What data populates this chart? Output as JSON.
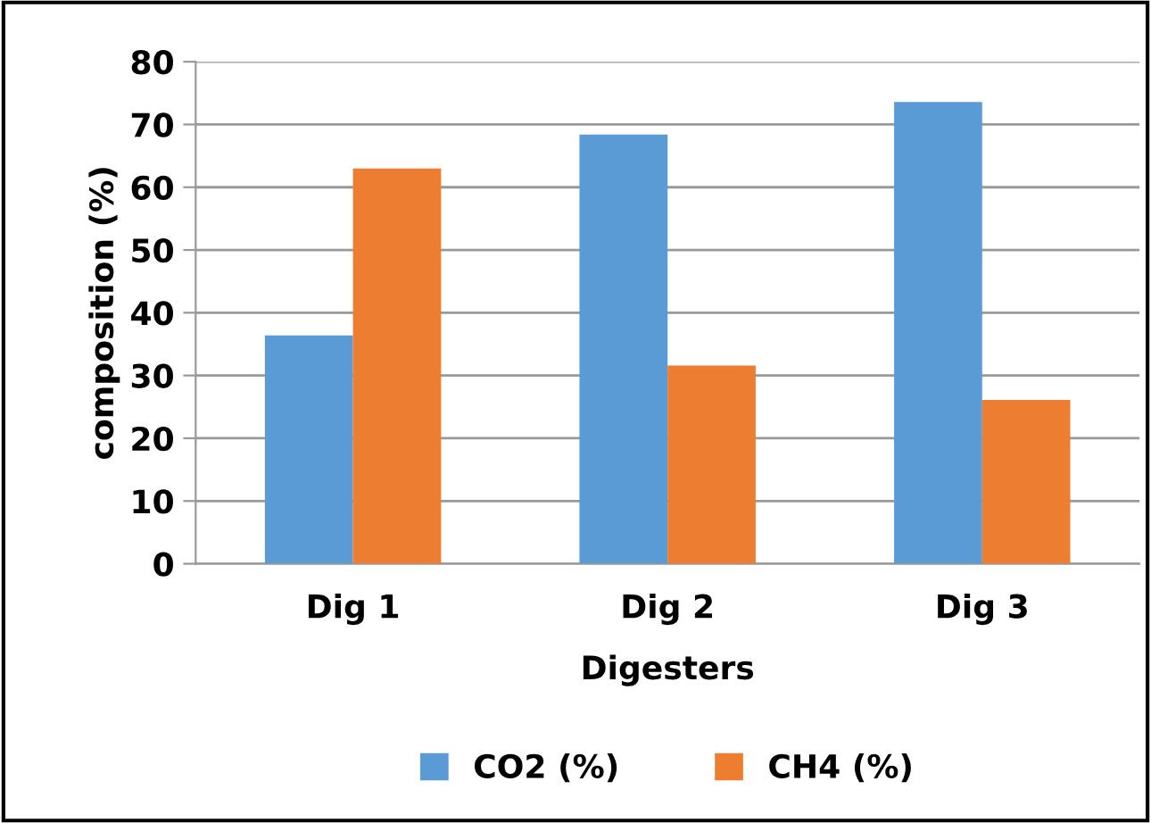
{
  "chart_data": {
    "type": "bar",
    "xlabel": "Digesters",
    "ylabel": "composition (%)",
    "categories": [
      "Dig 1",
      "Dig 2",
      "Dig 3"
    ],
    "series": [
      {
        "name": "CO2 (%)",
        "color": "#5b9bd5",
        "values": [
          36.4,
          68.4,
          73.6
        ]
      },
      {
        "name": "CH4 (%)",
        "color": "#ed7d31",
        "values": [
          63.0,
          31.6,
          26.1
        ]
      }
    ],
    "ylim": [
      0,
      80
    ],
    "yticks": [
      0,
      10,
      20,
      30,
      40,
      50,
      60,
      70,
      80
    ],
    "grid": "y",
    "legend": "bottom"
  }
}
